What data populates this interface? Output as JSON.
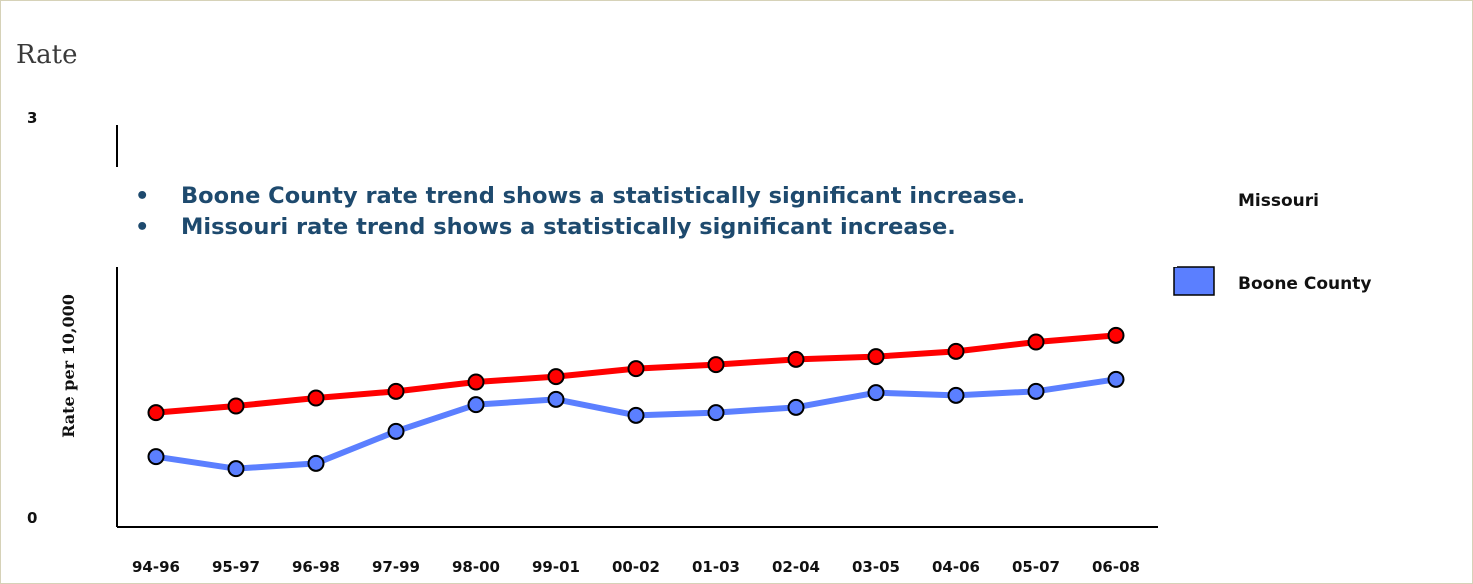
{
  "page": {
    "title": "Rate"
  },
  "notes": [
    "Boone County rate trend shows a statistically significant increase.",
    "Missouri rate trend shows a statistically significant increase."
  ],
  "chart_data": {
    "type": "line",
    "title": "",
    "xlabel": "",
    "ylabel": "Rate per 10,000",
    "ylim": [
      0,
      3
    ],
    "yticks": [
      "3",
      "0"
    ],
    "categories": [
      "94-96",
      "95-97",
      "96-98",
      "97-99",
      "98-00",
      "99-01",
      "00-02",
      "01-03",
      "02-04",
      "03-05",
      "04-06",
      "05-07",
      "06-08"
    ],
    "series": [
      {
        "name": "Missouri",
        "color": "#ff0000",
        "values": [
          0.85,
          0.9,
          0.96,
          1.01,
          1.08,
          1.12,
          1.18,
          1.21,
          1.25,
          1.27,
          1.31,
          1.38,
          1.43
        ]
      },
      {
        "name": "Boone County",
        "color": "#5b7fff",
        "values": [
          0.52,
          0.43,
          0.47,
          0.71,
          0.91,
          0.95,
          0.83,
          0.85,
          0.89,
          1.0,
          0.98,
          1.01,
          1.1
        ]
      }
    ],
    "legend": "right",
    "grid": false
  }
}
